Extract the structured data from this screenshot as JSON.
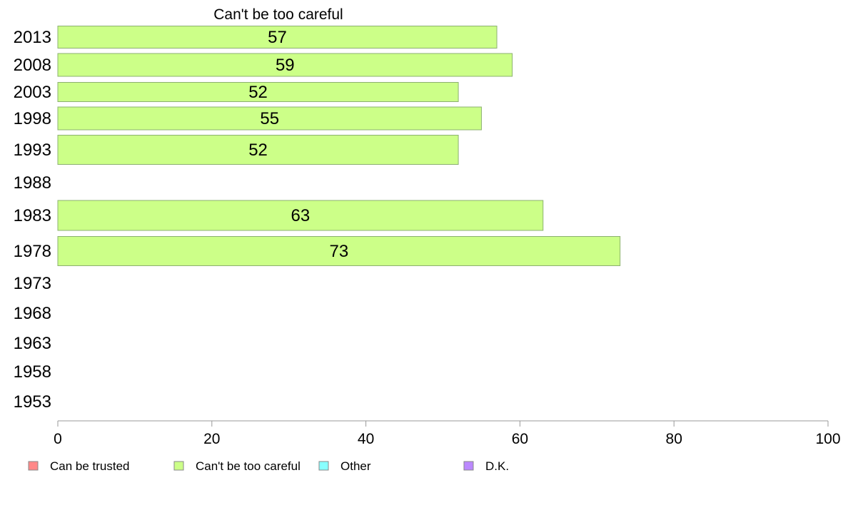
{
  "chart_data": {
    "type": "bar",
    "orientation": "horizontal",
    "title": "Can't be too careful",
    "xlabel": "",
    "ylabel": "",
    "xlim": [
      0,
      100
    ],
    "x_ticks": [
      0,
      20,
      40,
      60,
      80,
      100
    ],
    "grid": false,
    "categories": [
      "2013",
      "2008",
      "2003",
      "1998",
      "1993",
      "1988",
      "1983",
      "1978",
      "1973",
      "1968",
      "1963",
      "1958",
      "1953"
    ],
    "series": [
      {
        "name": "Can't be too careful",
        "color": "#ccff88",
        "values": [
          57,
          59,
          52,
          55,
          52,
          null,
          63,
          73,
          null,
          null,
          null,
          null,
          null
        ],
        "labels": [
          "57",
          "59",
          "52",
          "55",
          "52",
          "",
          "63",
          "73",
          "",
          "",
          "",
          "",
          ""
        ]
      }
    ],
    "legend": {
      "placement": "bottom",
      "items": [
        {
          "label": "Can be trusted",
          "color": "#ff8888"
        },
        {
          "label": "Can't be too careful",
          "color": "#ccff88"
        },
        {
          "label": "Other",
          "color": "#88ffff"
        },
        {
          "label": "D.K.",
          "color": "#bb88ff"
        }
      ]
    }
  }
}
